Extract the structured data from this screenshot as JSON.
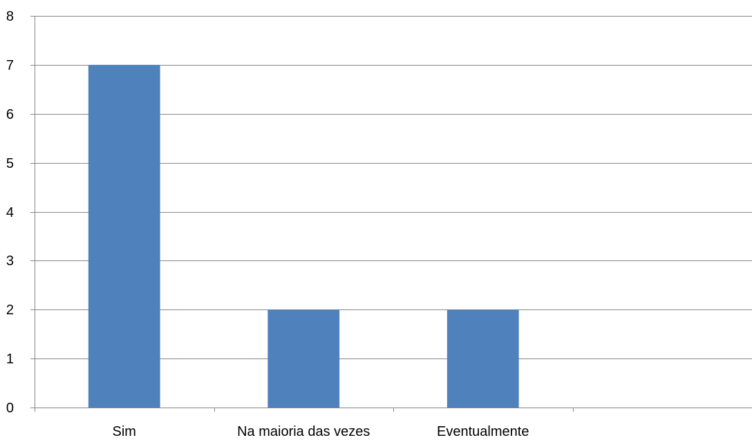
{
  "chart_data": {
    "type": "bar",
    "title": "",
    "xlabel": "",
    "ylabel": "",
    "categories": [
      "Sim",
      "Na maioria das vezes",
      "Eventualmente",
      ""
    ],
    "values": [
      7,
      2,
      2,
      0
    ],
    "ylim": [
      0,
      8
    ],
    "yticks": [
      "0",
      "1",
      "2",
      "3",
      "4",
      "5",
      "6",
      "7",
      "8"
    ],
    "grid": true,
    "legend": "none",
    "colors": {
      "bar": "#4F81BD",
      "grid": "#868686",
      "axis": "#868686",
      "text": "#000000"
    }
  }
}
